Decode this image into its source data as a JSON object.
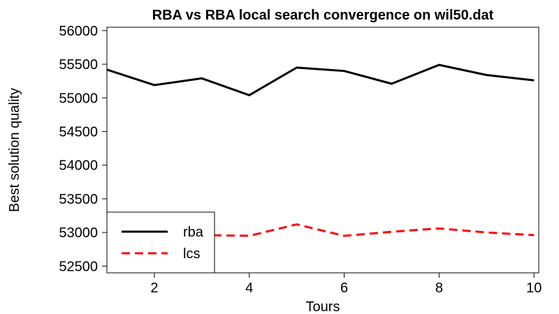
{
  "chart_data": {
    "type": "line",
    "title": "RBA vs RBA local search convergence on wil50.dat",
    "xlabel": "Tours",
    "ylabel": "Best solution quality",
    "x": [
      1,
      2,
      3,
      4,
      5,
      6,
      7,
      8,
      9,
      10
    ],
    "xlim": [
      1,
      10.1
    ],
    "ylim": [
      52400,
      56050
    ],
    "xticks": [
      2,
      4,
      6,
      8,
      10
    ],
    "yticks": [
      52500,
      53000,
      53500,
      54000,
      54500,
      55000,
      55500,
      56000
    ],
    "grid": false,
    "legend_position": "bottom-left",
    "series": [
      {
        "name": "rba",
        "color": "#000000",
        "dash": "solid",
        "values": [
          55420,
          55190,
          55290,
          55040,
          55450,
          55400,
          55210,
          55490,
          55340,
          55260
        ]
      },
      {
        "name": "lcs",
        "color": "#ff0000",
        "dash": "dashed",
        "values": [
          52960,
          52960,
          52960,
          52950,
          53120,
          52950,
          53010,
          53060,
          53000,
          52960
        ]
      }
    ]
  }
}
